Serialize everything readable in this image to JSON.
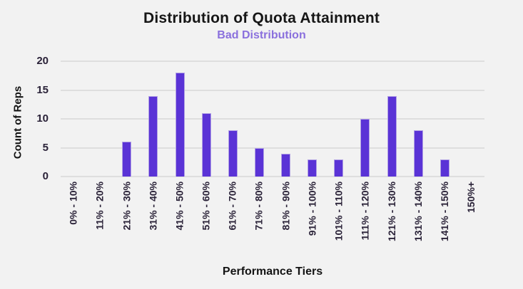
{
  "title": "Distribution of Quota Attainment",
  "subtitle": "Bad Distribution",
  "chart_data": {
    "type": "bar",
    "title": "Distribution of Quota Attainment",
    "subtitle": "Bad Distribution",
    "xlabel": "Performance Tiers",
    "ylabel": "Count of Reps",
    "categories": [
      "0% - 10%",
      "11% - 20%",
      "21% - 30%",
      "31% - 40%",
      "41% - 50%",
      "51% - 60%",
      "61% - 70%",
      "71% - 80%",
      "81% - 90%",
      "91% - 100%",
      "101% - 110%",
      "111% - 120%",
      "121% - 130%",
      "131% - 140%",
      "141% - 150%",
      "150%+"
    ],
    "values": [
      0,
      0,
      6,
      14,
      18,
      11,
      8,
      5,
      4,
      3,
      3,
      10,
      14,
      8,
      3,
      0
    ],
    "ylim": [
      0,
      20
    ],
    "yticks": [
      0,
      5,
      10,
      15,
      20
    ],
    "grid": true,
    "legend": false
  },
  "colors": {
    "background": "#f2f2f2",
    "bar_fill": "#5a33d6",
    "bar_border": "#b2a2e4",
    "gridline": "#dedede",
    "title_text": "#161616",
    "subtitle_text": "#8a70dd",
    "tick_label": "#2a2238",
    "axis_title": "#131313"
  }
}
